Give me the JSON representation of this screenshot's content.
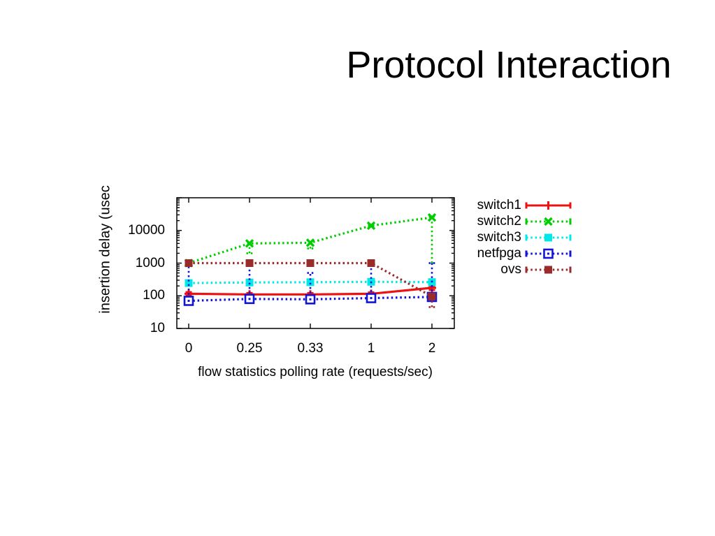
{
  "slide": {
    "title": "Protocol Interaction",
    "background_color": "#ffffff",
    "title_color": "#000000"
  },
  "chart_data": {
    "type": "line",
    "title": "",
    "xlabel": "flow statistics polling rate (requests/sec)",
    "ylabel": "insertion delay (usec",
    "x_categories": [
      "0",
      "0.25",
      "0.33",
      "1",
      "2"
    ],
    "y_scale": "log",
    "y_tick_labels": [
      "10",
      "100",
      "1000",
      "10000"
    ],
    "y_tick_values": [
      10,
      100,
      1000,
      10000
    ],
    "ylim": [
      10,
      100000
    ],
    "grid": false,
    "legend_position": "outside-right",
    "series": [
      {
        "name": "switch1",
        "color": "#ee1111",
        "line_style": "solid",
        "marker": "plus",
        "values": [
          115,
          110,
          110,
          115,
          175
        ],
        "err_low": [
          100,
          98,
          98,
          102,
          150
        ],
        "err_high": [
          130,
          122,
          122,
          128,
          200
        ]
      },
      {
        "name": "switch2",
        "color": "#00cc00",
        "line_style": "dotted",
        "marker": "cross",
        "values": [
          1000,
          4000,
          4200,
          14000,
          25000
        ],
        "err_low": [
          950,
          2000,
          2800,
          13000,
          1000
        ],
        "err_high": [
          1060,
          4700,
          4900,
          15000,
          26500
        ]
      },
      {
        "name": "switch3",
        "color": "#00e8e8",
        "line_style": "dotted",
        "marker": "square-filled",
        "values": [
          245,
          255,
          260,
          268,
          262
        ],
        "err_low": [
          225,
          238,
          240,
          250,
          210
        ],
        "err_high": [
          268,
          275,
          282,
          288,
          310
        ]
      },
      {
        "name": "netfpga",
        "color": "#1414d6",
        "line_style": "dotted",
        "marker": "square-open",
        "values": [
          70,
          80,
          78,
          85,
          92
        ],
        "err_low": [
          58,
          64,
          64,
          70,
          74
        ],
        "err_high": [
          1000,
          1000,
          500,
          1000,
          1000
        ]
      },
      {
        "name": "ovs",
        "color": "#9b2a2a",
        "line_style": "dotted",
        "marker": "square-filled",
        "values": [
          1000,
          1000,
          1000,
          1000,
          95
        ],
        "err_low": [
          940,
          940,
          940,
          940,
          45
        ],
        "err_high": [
          1065,
          1065,
          1065,
          1065,
          108
        ]
      }
    ]
  }
}
